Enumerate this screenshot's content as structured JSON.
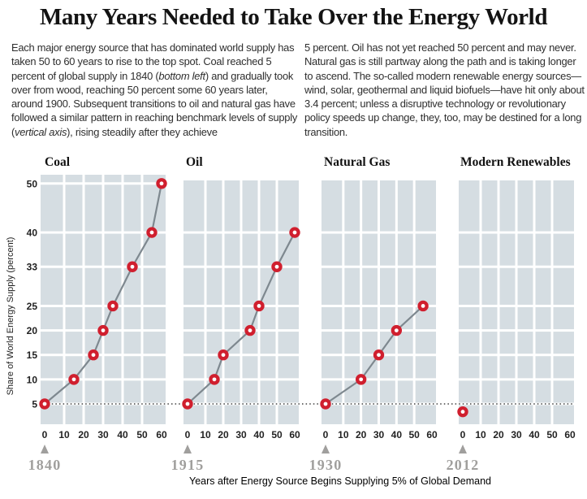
{
  "title": "Many Years Needed to Take Over the Energy World",
  "intro": {
    "left_segments": [
      {
        "text": "Each major energy source that has dominated world supply has taken 50 to 60 years to rise to the top spot. Coal reached 5 percent of global supply in 1840 ("
      },
      {
        "text": "bottom left",
        "italic": true
      },
      {
        "text": ") and gradually took over from wood, reaching 50 percent some 60 years later, around 1900. Subsequent transitions to oil and natural gas have followed a similar pattern in reaching benchmark levels of supply ("
      },
      {
        "text": "vertical axis",
        "italic": true
      },
      {
        "text": "), rising steadily after they achieve"
      }
    ],
    "right_segments": [
      {
        "text": "5 percent. Oil has not yet reached 50 percent and may never. Natural gas is still partway along the path and is taking longer to ascend. The so-called modern renewable energy sources—wind, solar, geothermal and liquid biofuels—have hit only about 3.4 percent; unless a disruptive technology or revolutionary policy speeds up change, they, too, may be destined for a long transition."
      }
    ]
  },
  "chart_data": {
    "type": "line",
    "title": "Many Years Needed to Take Over the Energy World",
    "ylabel": "Share of World Energy Supply (percent)",
    "xlabel": "Years after Energy Source Begins Supplying 5% of Global Demand",
    "y_ticks": [
      5,
      10,
      15,
      20,
      25,
      33,
      40,
      50
    ],
    "x_ticks": [
      0,
      10,
      20,
      30,
      40,
      50,
      60
    ],
    "xlim": [
      0,
      60
    ],
    "ylim": [
      1,
      52
    ],
    "grid": true,
    "reference_line_y": 5,
    "panels": [
      {
        "name": "Coal",
        "start_year": "1840",
        "points": [
          [
            0,
            5
          ],
          [
            15,
            10
          ],
          [
            25,
            15
          ],
          [
            30,
            20
          ],
          [
            35,
            25
          ],
          [
            45,
            33
          ],
          [
            55,
            40
          ],
          [
            60,
            50
          ]
        ]
      },
      {
        "name": "Oil",
        "start_year": "1915",
        "points": [
          [
            0,
            5
          ],
          [
            15,
            10
          ],
          [
            20,
            15
          ],
          [
            35,
            20
          ],
          [
            40,
            25
          ],
          [
            50,
            33
          ],
          [
            60,
            40
          ]
        ]
      },
      {
        "name": "Natural Gas",
        "start_year": "1930",
        "points": [
          [
            0,
            5
          ],
          [
            20,
            10
          ],
          [
            30,
            15
          ],
          [
            40,
            20
          ],
          [
            55,
            25
          ]
        ]
      },
      {
        "name": "Modern Renewables",
        "start_year": "2012",
        "points": [
          [
            0,
            3.4
          ]
        ]
      }
    ],
    "colors": {
      "point_red": "#d01f2e",
      "point_hole": "#ffffff",
      "trend_line": "#7e888f",
      "grid_cell": "#d5dde2",
      "grid_gap": "#ffffff",
      "year_gray": "#a09f9d",
      "tick_text": "#222222",
      "dotted_line": "#1a1a1a"
    }
  }
}
